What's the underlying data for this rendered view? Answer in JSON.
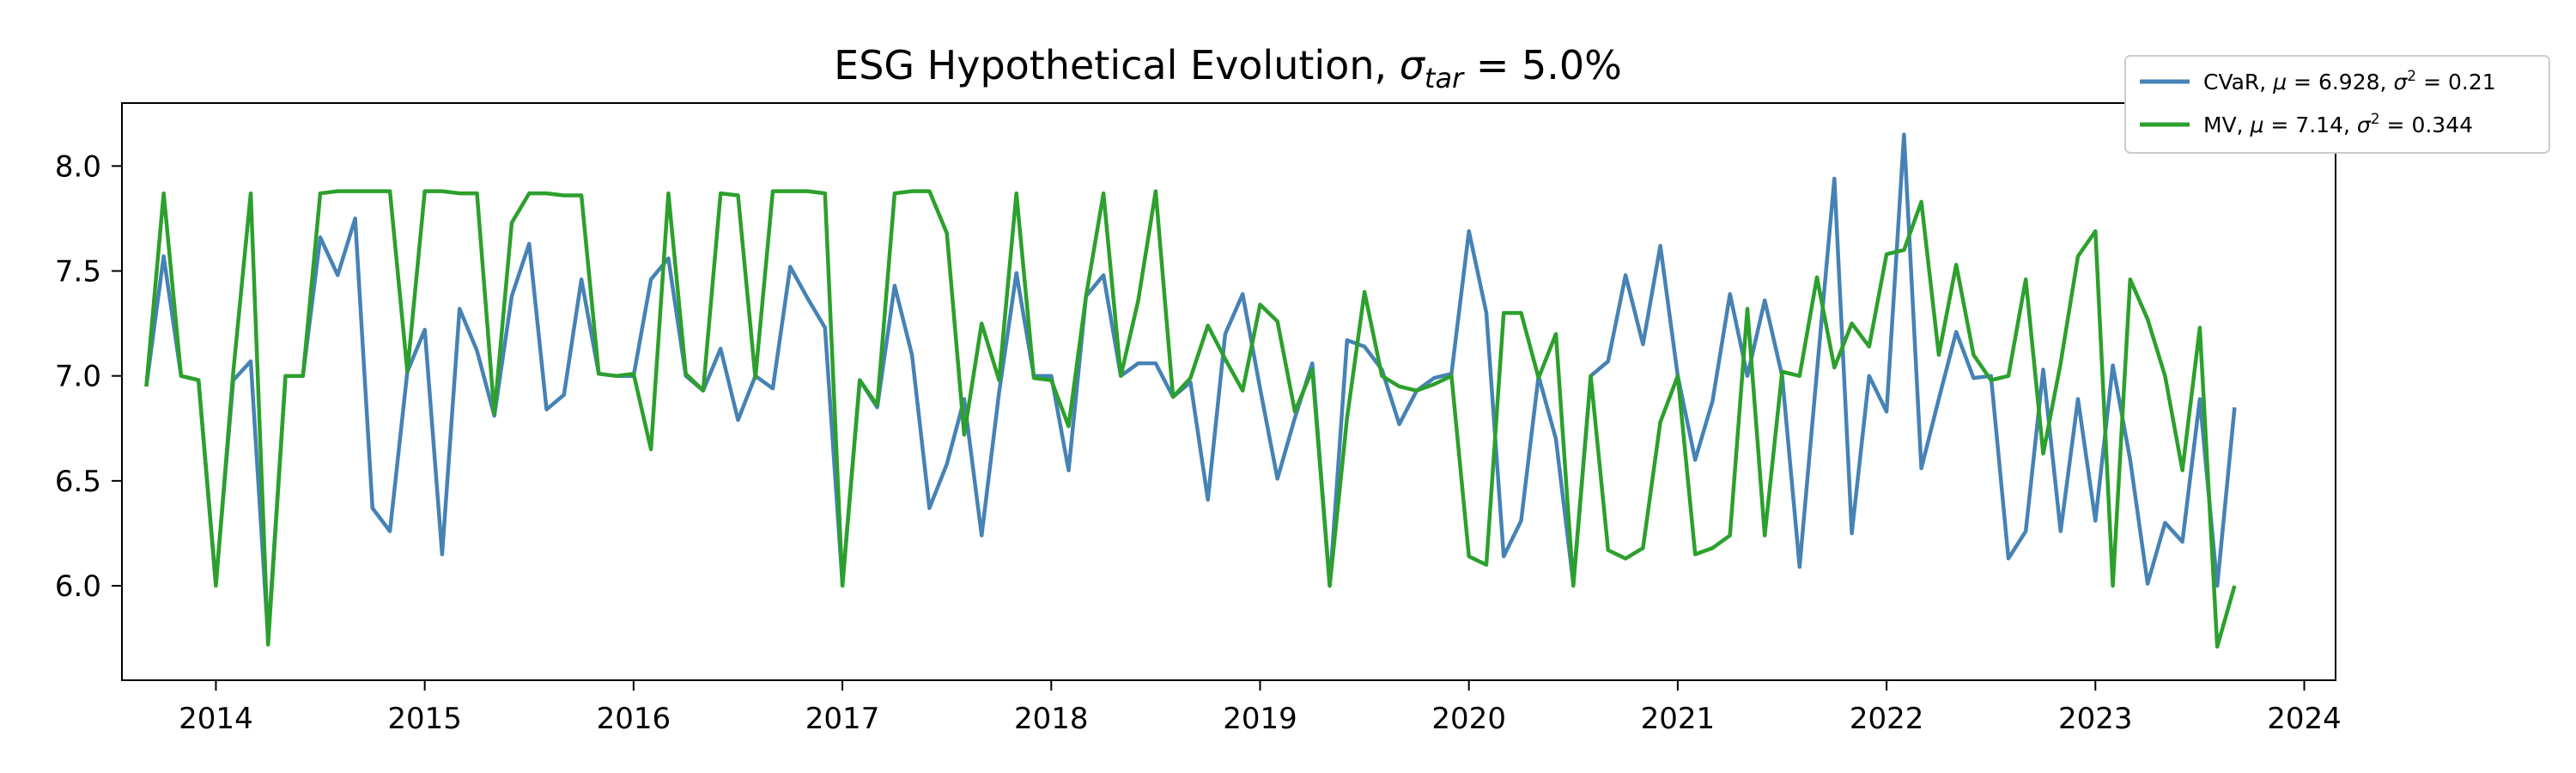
{
  "chart_data": {
    "type": "line",
    "title_prefix": "ESG Hypothetical Evolution, ",
    "title_sigma": "σ",
    "title_sub": "tar",
    "title_suffix": " = 5.0%",
    "xlabel": "",
    "ylabel": "",
    "xlim": [
      2013.55,
      2024.15
    ],
    "ylim": [
      5.55,
      8.3
    ],
    "xticks": [
      "2014",
      "2015",
      "2016",
      "2017",
      "2018",
      "2019",
      "2020",
      "2021",
      "2022",
      "2023",
      "2024"
    ],
    "yticks": [
      "6.0",
      "6.5",
      "7.0",
      "7.5",
      "8.0"
    ],
    "grid": false,
    "legend_position": "outside-top-right",
    "x": [
      "2013-09",
      "2013-10",
      "2013-11",
      "2013-12",
      "2014-01",
      "2014-02",
      "2014-03",
      "2014-04",
      "2014-05",
      "2014-06",
      "2014-07",
      "2014-08",
      "2014-09",
      "2014-10",
      "2014-11",
      "2014-12",
      "2015-01",
      "2015-02",
      "2015-03",
      "2015-04",
      "2015-05",
      "2015-06",
      "2015-07",
      "2015-08",
      "2015-09",
      "2015-10",
      "2015-11",
      "2015-12",
      "2016-01",
      "2016-02",
      "2016-03",
      "2016-04",
      "2016-05",
      "2016-06",
      "2016-07",
      "2016-08",
      "2016-09",
      "2016-10",
      "2016-11",
      "2016-12",
      "2017-01",
      "2017-02",
      "2017-03",
      "2017-04",
      "2017-05",
      "2017-06",
      "2017-07",
      "2017-08",
      "2017-09",
      "2017-10",
      "2017-11",
      "2017-12",
      "2018-01",
      "2018-02",
      "2018-03",
      "2018-04",
      "2018-05",
      "2018-06",
      "2018-07",
      "2018-08",
      "2018-09",
      "2018-10",
      "2018-11",
      "2018-12",
      "2019-01",
      "2019-02",
      "2019-03",
      "2019-04",
      "2019-05",
      "2019-06",
      "2019-07",
      "2019-08",
      "2019-09",
      "2019-10",
      "2019-11",
      "2019-12",
      "2020-01",
      "2020-02",
      "2020-03",
      "2020-04",
      "2020-05",
      "2020-06",
      "2020-07",
      "2020-08",
      "2020-09",
      "2020-10",
      "2020-11",
      "2020-12",
      "2021-01",
      "2021-02",
      "2021-03",
      "2021-04",
      "2021-05",
      "2021-06",
      "2021-07",
      "2021-08",
      "2021-09",
      "2021-10",
      "2021-11",
      "2021-12",
      "2022-01",
      "2022-02",
      "2022-03",
      "2022-04",
      "2022-05",
      "2022-06",
      "2022-07",
      "2022-08",
      "2022-09",
      "2022-10",
      "2022-11",
      "2022-12",
      "2023-01",
      "2023-02",
      "2023-03",
      "2023-04",
      "2023-05",
      "2023-06",
      "2023-07",
      "2023-08",
      "2023-09"
    ],
    "series": [
      {
        "name": "CVaR, μ = 6.928, σ² = 0.21",
        "label_prefix": "CVaR, ",
        "mu_value": "6.928",
        "sigma2_value": "0.21",
        "color": "#4682b4",
        "values": [
          6.95,
          7.57,
          7.0,
          6.98,
          6.01,
          6.98,
          7.07,
          5.75,
          7.0,
          7.0,
          7.66,
          7.48,
          7.75,
          6.37,
          6.26,
          7.02,
          7.22,
          6.15,
          7.32,
          7.12,
          6.81,
          7.38,
          7.63,
          6.84,
          6.91,
          7.46,
          7.01,
          7.0,
          7.0,
          7.46,
          7.56,
          7.0,
          6.93,
          7.13,
          6.79,
          7.0,
          6.94,
          7.52,
          7.37,
          7.23,
          6.01,
          6.98,
          6.85,
          7.43,
          7.1,
          6.37,
          6.58,
          6.89,
          6.24,
          6.92,
          7.49,
          7.0,
          7.0,
          6.55,
          7.38,
          7.48,
          7.0,
          7.06,
          7.06,
          6.9,
          6.97,
          6.41,
          7.2,
          7.39,
          6.94,
          6.51,
          6.8,
          7.06,
          6.0,
          7.17,
          7.14,
          7.03,
          6.77,
          6.93,
          6.99,
          7.01,
          7.69,
          7.3,
          6.14,
          6.31,
          7.0,
          6.7,
          6.01,
          7.0,
          7.07,
          7.48,
          7.15,
          7.62,
          7.0,
          6.6,
          6.88,
          7.39,
          7.0,
          7.36,
          7.0,
          6.09,
          7.02,
          7.94,
          6.25,
          7.0,
          6.83,
          8.15,
          6.56,
          6.89,
          7.21,
          6.99,
          7.0,
          6.13,
          6.26,
          7.03,
          6.26,
          6.89,
          6.31,
          7.05,
          6.6,
          6.01,
          6.3,
          6.21,
          6.89,
          6.0,
          6.85
        ]
      },
      {
        "name": "MV, μ = 7.14, σ² = 0.344",
        "label_prefix": "MV, ",
        "mu_value": "7.14",
        "sigma2_value": "0.344",
        "color": "#2ca02c",
        "values": [
          6.95,
          7.87,
          7.0,
          6.98,
          6.0,
          7.02,
          7.87,
          5.72,
          7.0,
          7.0,
          7.87,
          7.88,
          7.88,
          7.88,
          7.88,
          7.02,
          7.88,
          7.88,
          7.87,
          7.87,
          6.82,
          7.73,
          7.87,
          7.87,
          7.86,
          7.86,
          7.01,
          7.0,
          7.01,
          6.65,
          7.87,
          7.01,
          6.93,
          7.87,
          7.86,
          6.99,
          7.88,
          7.88,
          7.88,
          7.87,
          6.0,
          6.98,
          6.86,
          7.87,
          7.88,
          7.88,
          7.68,
          6.72,
          7.25,
          6.98,
          7.87,
          6.99,
          6.98,
          6.76,
          7.38,
          7.87,
          7.0,
          7.36,
          7.88,
          6.9,
          6.99,
          7.24,
          7.08,
          6.93,
          7.34,
          7.26,
          6.83,
          7.03,
          6.0,
          6.8,
          7.4,
          7.0,
          6.95,
          6.93,
          6.96,
          7.0,
          6.14,
          6.1,
          7.3,
          7.3,
          6.99,
          7.2,
          6.0,
          7.0,
          6.17,
          6.13,
          6.18,
          6.78,
          7.0,
          6.15,
          6.18,
          6.24,
          7.32,
          6.24,
          7.02,
          7.0,
          7.47,
          7.04,
          7.25,
          7.14,
          7.58,
          7.6,
          7.83,
          7.1,
          7.53,
          7.1,
          6.98,
          7.0,
          7.46,
          6.63,
          7.06,
          7.57,
          7.69,
          6.0,
          7.46,
          7.27,
          7.0,
          6.55,
          7.23,
          5.71,
          6.0
        ]
      }
    ]
  }
}
